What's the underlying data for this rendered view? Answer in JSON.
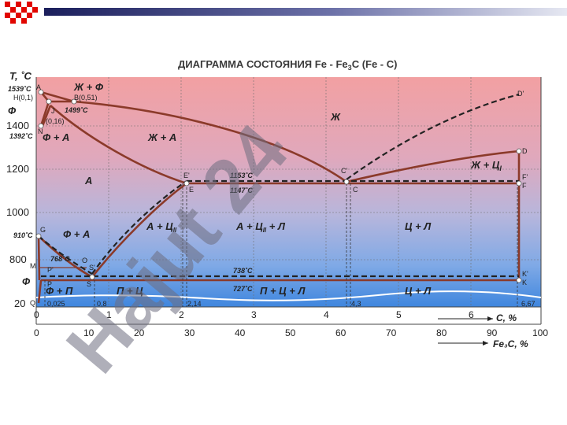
{
  "slide": {
    "title": "ДИАГРАММА СОСТОЯНИЯ Fe - Fe",
    "title_sub": "3",
    "title_tail": "C (Fe - C)",
    "watermark": "Hajut 24"
  },
  "axes": {
    "y_title": "T, ˚C",
    "y_ticks": [
      "1400",
      "1200",
      "1000",
      "800",
      "20"
    ],
    "c_ticks": [
      "0",
      "1",
      "2",
      "3",
      "4",
      "5",
      "6"
    ],
    "c_label": "C, %",
    "fe3c_ticks": [
      "0",
      "10",
      "20",
      "30",
      "40",
      "50",
      "60",
      "70",
      "80",
      "90",
      "100"
    ],
    "fe3c_label": "Fe₃C, %"
  },
  "temps": {
    "t1539": "1539˚C",
    "t1499": "1499˚C",
    "t1392": "1392˚C",
    "t910": "910˚C",
    "t768": "768˚C",
    "t1153": "1153˚C",
    "t1147": "1147˚C",
    "t738": "738˚C",
    "t727": "727˚C"
  },
  "points": {
    "A": "A",
    "H": "H(0,1)",
    "B": "B(0,51)",
    "J": "J",
    "N": "N",
    "j016": "(0,16)",
    "G": "G",
    "M": "M",
    "O": "O",
    "P": "P",
    "Pp": "P'",
    "S": "S",
    "Sp": "S'",
    "Q": "Q",
    "E": "E",
    "Ep": "E'",
    "C": "C",
    "Cp": "C'",
    "D": "D",
    "Dp": "D'",
    "F": "F",
    "Fp": "F'",
    "K": "K",
    "Kp": "K'",
    "v0025": "0,025",
    "v08": "0,8",
    "v214": "2,14",
    "v43": "4,3",
    "v667": "6,67"
  },
  "phases": {
    "liquid": "Ж",
    "liq_ferrite": "Ж + Ф",
    "ferrite": "Ф",
    "ferrite_austenite_top": "Ф + А",
    "liq_austenite": "Ж + А",
    "austenite": "А",
    "liq_cementite": "Ж + Ц",
    "liq_cementite_sub": "I",
    "ferrite_austenite": "Ф + А",
    "aust_cem": "А + Ц",
    "aust_cem_sub": "II",
    "aust_cem_led": "А + Ц",
    "aust_cem_led_tail": " + Л",
    "cem_led": "Ц + Л",
    "ferrite_low": "Ф",
    "ferrite_pearlite": "Ф + П",
    "pearlite_cem": "П + Ц",
    "pearlite_cem_led": "П + Ц + Л",
    "cem_led_low": "Ц + Л"
  },
  "colors": {
    "header_dark": "#1b1f5c",
    "header_light": "#c8cbe0",
    "header_squares": "#e10600",
    "bg_top": "#f2a4a4",
    "bg_mid": "#c9b7d8",
    "bg_bottom": "#4a8fe2",
    "curve": "#8b3a2a",
    "grid": "#7a7a7a",
    "watermark": "#6e6e80"
  }
}
